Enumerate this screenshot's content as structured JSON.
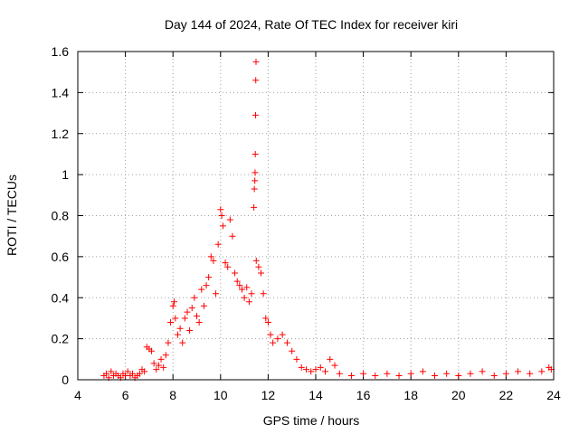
{
  "chart_data": {
    "type": "scatter",
    "title": "Day 144 of 2024, Rate Of TEC Index for receiver kiri",
    "xlabel": "GPS time / hours",
    "ylabel": "ROTI / TECUs",
    "xlim": [
      4,
      24
    ],
    "ylim": [
      0,
      1.6
    ],
    "x_ticks": [
      4,
      6,
      8,
      10,
      12,
      14,
      16,
      18,
      20,
      22,
      24
    ],
    "x_tick_labels": [
      "4",
      "6",
      "8",
      "10",
      "12",
      "14",
      "16",
      "18",
      "20",
      "22",
      "24"
    ],
    "y_ticks": [
      0,
      0.2,
      0.4,
      0.6,
      0.8,
      1.0,
      1.2,
      1.4,
      1.6
    ],
    "y_tick_labels": [
      "0",
      "0.2",
      "0.4",
      "0.6",
      "0.8",
      "1",
      "1.2",
      "1.4",
      "1.6"
    ],
    "grid": true,
    "marker": "+",
    "series": [
      {
        "name": "ROTI",
        "color": "#ff0000",
        "points": [
          [
            5.1,
            0.02
          ],
          [
            5.2,
            0.03
          ],
          [
            5.3,
            0.01
          ],
          [
            5.4,
            0.04
          ],
          [
            5.5,
            0.02
          ],
          [
            5.6,
            0.03
          ],
          [
            5.7,
            0.02
          ],
          [
            5.8,
            0.01
          ],
          [
            5.9,
            0.03
          ],
          [
            6.0,
            0.02
          ],
          [
            6.1,
            0.04
          ],
          [
            6.2,
            0.02
          ],
          [
            6.3,
            0.03
          ],
          [
            6.4,
            0.01
          ],
          [
            6.5,
            0.02
          ],
          [
            6.6,
            0.03
          ],
          [
            6.7,
            0.05
          ],
          [
            6.8,
            0.04
          ],
          [
            6.9,
            0.16
          ],
          [
            7.0,
            0.15
          ],
          [
            7.1,
            0.14
          ],
          [
            7.2,
            0.08
          ],
          [
            7.3,
            0.05
          ],
          [
            7.4,
            0.07
          ],
          [
            7.5,
            0.1
          ],
          [
            7.6,
            0.06
          ],
          [
            7.7,
            0.12
          ],
          [
            7.8,
            0.18
          ],
          [
            7.9,
            0.28
          ],
          [
            8.0,
            0.36
          ],
          [
            8.05,
            0.38
          ],
          [
            8.1,
            0.3
          ],
          [
            8.2,
            0.22
          ],
          [
            8.3,
            0.25
          ],
          [
            8.4,
            0.18
          ],
          [
            8.5,
            0.3
          ],
          [
            8.6,
            0.33
          ],
          [
            8.7,
            0.24
          ],
          [
            8.8,
            0.35
          ],
          [
            8.9,
            0.4
          ],
          [
            9.0,
            0.31
          ],
          [
            9.1,
            0.28
          ],
          [
            9.2,
            0.44
          ],
          [
            9.3,
            0.36
          ],
          [
            9.4,
            0.46
          ],
          [
            9.5,
            0.5
          ],
          [
            9.6,
            0.6
          ],
          [
            9.7,
            0.58
          ],
          [
            9.8,
            0.42
          ],
          [
            9.9,
            0.66
          ],
          [
            10.0,
            0.83
          ],
          [
            10.05,
            0.8
          ],
          [
            10.1,
            0.75
          ],
          [
            10.2,
            0.57
          ],
          [
            10.3,
            0.55
          ],
          [
            10.4,
            0.78
          ],
          [
            10.5,
            0.7
          ],
          [
            10.6,
            0.52
          ],
          [
            10.7,
            0.48
          ],
          [
            10.8,
            0.46
          ],
          [
            10.9,
            0.44
          ],
          [
            11.0,
            0.4
          ],
          [
            11.1,
            0.45
          ],
          [
            11.2,
            0.38
          ],
          [
            11.3,
            0.42
          ],
          [
            11.4,
            0.84
          ],
          [
            11.42,
            0.93
          ],
          [
            11.44,
            0.97
          ],
          [
            11.45,
            1.01
          ],
          [
            11.46,
            1.1
          ],
          [
            11.47,
            1.29
          ],
          [
            11.48,
            1.46
          ],
          [
            11.49,
            1.55
          ],
          [
            11.5,
            0.58
          ],
          [
            11.6,
            0.55
          ],
          [
            11.7,
            0.52
          ],
          [
            11.8,
            0.42
          ],
          [
            11.9,
            0.3
          ],
          [
            12.0,
            0.28
          ],
          [
            12.1,
            0.22
          ],
          [
            12.2,
            0.18
          ],
          [
            12.4,
            0.2
          ],
          [
            12.6,
            0.22
          ],
          [
            12.8,
            0.18
          ],
          [
            13.0,
            0.14
          ],
          [
            13.2,
            0.1
          ],
          [
            13.4,
            0.06
          ],
          [
            13.6,
            0.05
          ],
          [
            13.8,
            0.04
          ],
          [
            14.0,
            0.05
          ],
          [
            14.2,
            0.06
          ],
          [
            14.4,
            0.04
          ],
          [
            14.6,
            0.1
          ],
          [
            14.8,
            0.07
          ],
          [
            15.0,
            0.03
          ],
          [
            15.5,
            0.02
          ],
          [
            16.0,
            0.03
          ],
          [
            16.5,
            0.02
          ],
          [
            17.0,
            0.03
          ],
          [
            17.5,
            0.02
          ],
          [
            18.0,
            0.03
          ],
          [
            18.5,
            0.04
          ],
          [
            19.0,
            0.02
          ],
          [
            19.5,
            0.03
          ],
          [
            20.0,
            0.02
          ],
          [
            20.5,
            0.03
          ],
          [
            21.0,
            0.04
          ],
          [
            21.5,
            0.02
          ],
          [
            22.0,
            0.03
          ],
          [
            22.5,
            0.04
          ],
          [
            23.0,
            0.03
          ],
          [
            23.5,
            0.04
          ],
          [
            23.8,
            0.06
          ],
          [
            23.9,
            0.05
          ]
        ]
      }
    ]
  }
}
